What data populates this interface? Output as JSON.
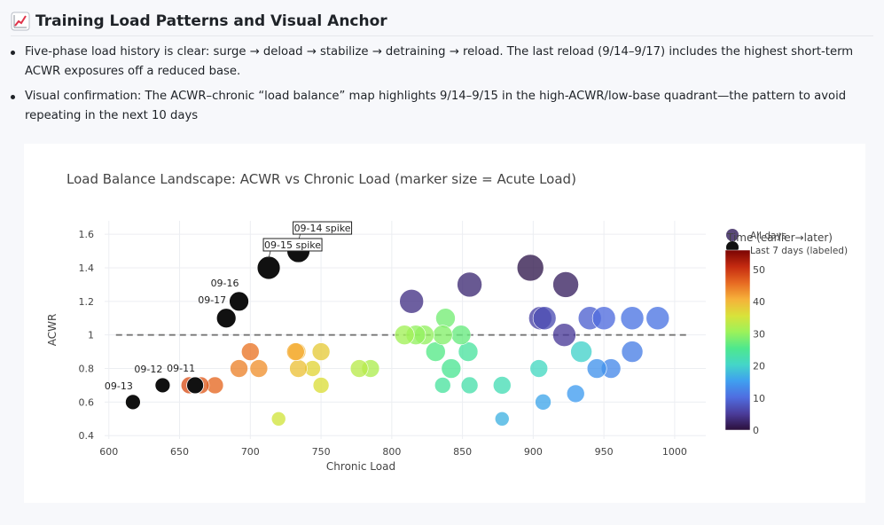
{
  "header": {
    "title": "Training Load Patterns and Visual Anchor",
    "icon": "chart-increasing-icon"
  },
  "bullets": [
    "Five-phase load history is clear: surge → deload → stabilize → detraining → reload. The last reload (9/14–9/17) includes the highest short-term ACWR exposures off a reduced base.",
    "Visual confirmation: The ACWR–chronic “load balance” map highlights 9/14–9/15 in the high-ACWR/low-base quadrant—the pattern to avoid repeating in the next 10 days"
  ],
  "chart_data": {
    "type": "scatter",
    "title": "Load Balance Landscape: ACWR vs Chronic Load (marker size = Acute Load)",
    "xlabel": "Chronic Load",
    "ylabel": "ACWR",
    "xlim": [
      597,
      1022
    ],
    "ylim": [
      0.38,
      1.68
    ],
    "xticks": [
      600,
      650,
      700,
      750,
      800,
      850,
      900,
      950,
      1000
    ],
    "yticks": [
      0.4,
      0.6,
      0.8,
      1,
      1.2,
      1.4,
      1.6
    ],
    "reference_line": {
      "y": 1.0,
      "style": "dashed",
      "color": "#777777"
    },
    "colorbar": {
      "title": "Time (earlier→later)",
      "min": 0,
      "max": 56,
      "ticks": [
        0,
        10,
        20,
        30,
        40,
        50
      ],
      "colorscale": [
        "#2b0f3a",
        "#4b3c9a",
        "#4f6de0",
        "#3f9ff0",
        "#44d6c8",
        "#4ee88e",
        "#9cf25a",
        "#d9e23a",
        "#f6b13a",
        "#e76a22",
        "#c42a10",
        "#7a0403"
      ]
    },
    "legend": {
      "placement": "top-right",
      "items": [
        {
          "name": "All days",
          "color": "#5a4a7a"
        },
        {
          "name": "Last 7 days (labeled)",
          "color": "#111111"
        }
      ]
    },
    "series": [
      {
        "name": "All days",
        "points": [
          {
            "x": 898,
            "y": 1.4,
            "t": 1,
            "size": 30
          },
          {
            "x": 923,
            "y": 1.3,
            "t": 2,
            "size": 29
          },
          {
            "x": 855,
            "y": 1.3,
            "t": 3,
            "size": 28
          },
          {
            "x": 814,
            "y": 1.2,
            "t": 4,
            "size": 27
          },
          {
            "x": 922,
            "y": 1.0,
            "t": 5,
            "size": 26
          },
          {
            "x": 905,
            "y": 1.1,
            "t": 6,
            "size": 26
          },
          {
            "x": 908,
            "y": 1.1,
            "t": 7,
            "size": 26
          },
          {
            "x": 940,
            "y": 1.1,
            "t": 9,
            "size": 26
          },
          {
            "x": 950,
            "y": 1.1,
            "t": 10,
            "size": 26
          },
          {
            "x": 970,
            "y": 1.1,
            "t": 11,
            "size": 26
          },
          {
            "x": 988,
            "y": 1.1,
            "t": 11,
            "size": 26
          },
          {
            "x": 970,
            "y": 0.9,
            "t": 12,
            "size": 24
          },
          {
            "x": 955,
            "y": 0.8,
            "t": 13,
            "size": 22
          },
          {
            "x": 945,
            "y": 0.8,
            "t": 14,
            "size": 22
          },
          {
            "x": 930,
            "y": 0.65,
            "t": 15,
            "size": 20
          },
          {
            "x": 907,
            "y": 0.6,
            "t": 16,
            "size": 18
          },
          {
            "x": 878,
            "y": 0.5,
            "t": 17,
            "size": 16
          },
          {
            "x": 934,
            "y": 0.9,
            "t": 20,
            "size": 24
          },
          {
            "x": 904,
            "y": 0.8,
            "t": 21,
            "size": 20
          },
          {
            "x": 878,
            "y": 0.7,
            "t": 22,
            "size": 20
          },
          {
            "x": 855,
            "y": 0.7,
            "t": 23,
            "size": 19
          },
          {
            "x": 836,
            "y": 0.7,
            "t": 24,
            "size": 18
          },
          {
            "x": 854,
            "y": 0.9,
            "t": 24,
            "size": 22
          },
          {
            "x": 842,
            "y": 0.8,
            "t": 25,
            "size": 22
          },
          {
            "x": 831,
            "y": 0.9,
            "t": 26,
            "size": 22
          },
          {
            "x": 849,
            "y": 1.0,
            "t": 27,
            "size": 22
          },
          {
            "x": 838,
            "y": 1.1,
            "t": 28,
            "size": 22
          },
          {
            "x": 836,
            "y": 1.0,
            "t": 29,
            "size": 22
          },
          {
            "x": 823,
            "y": 1.0,
            "t": 30,
            "size": 22
          },
          {
            "x": 817,
            "y": 1.0,
            "t": 30,
            "size": 22
          },
          {
            "x": 809,
            "y": 1.0,
            "t": 31,
            "size": 22
          },
          {
            "x": 785,
            "y": 0.8,
            "t": 32,
            "size": 20
          },
          {
            "x": 777,
            "y": 0.8,
            "t": 33,
            "size": 20
          },
          {
            "x": 720,
            "y": 0.5,
            "t": 35,
            "size": 16
          },
          {
            "x": 750,
            "y": 0.7,
            "t": 36,
            "size": 18
          },
          {
            "x": 744,
            "y": 0.8,
            "t": 37,
            "size": 18
          },
          {
            "x": 750,
            "y": 0.9,
            "t": 38,
            "size": 20
          },
          {
            "x": 734,
            "y": 0.8,
            "t": 39,
            "size": 20
          },
          {
            "x": 733,
            "y": 0.9,
            "t": 40,
            "size": 20
          },
          {
            "x": 732,
            "y": 0.9,
            "t": 41,
            "size": 20
          },
          {
            "x": 706,
            "y": 0.8,
            "t": 43,
            "size": 20
          },
          {
            "x": 692,
            "y": 0.8,
            "t": 44,
            "size": 20
          },
          {
            "x": 700,
            "y": 0.9,
            "t": 45,
            "size": 20
          },
          {
            "x": 675,
            "y": 0.7,
            "t": 46,
            "size": 19
          },
          {
            "x": 665,
            "y": 0.7,
            "t": 47,
            "size": 19
          },
          {
            "x": 657,
            "y": 0.7,
            "t": 48,
            "size": 19
          }
        ]
      },
      {
        "name": "Last 7 days (labeled)",
        "points": [
          {
            "x": 734,
            "y": 1.5,
            "size": 26,
            "label": "09-14 spike",
            "boxed": true
          },
          {
            "x": 713,
            "y": 1.4,
            "size": 26,
            "label": "09-15 spike",
            "boxed": true
          },
          {
            "x": 692,
            "y": 1.2,
            "size": 22,
            "label": "09-16"
          },
          {
            "x": 683,
            "y": 1.1,
            "size": 22,
            "label": "09-17"
          },
          {
            "x": 661,
            "y": 0.7,
            "size": 19,
            "label": "09-11"
          },
          {
            "x": 638,
            "y": 0.7,
            "size": 17,
            "label": "09-12"
          },
          {
            "x": 617,
            "y": 0.6,
            "size": 17,
            "label": "09-13"
          }
        ]
      }
    ]
  }
}
